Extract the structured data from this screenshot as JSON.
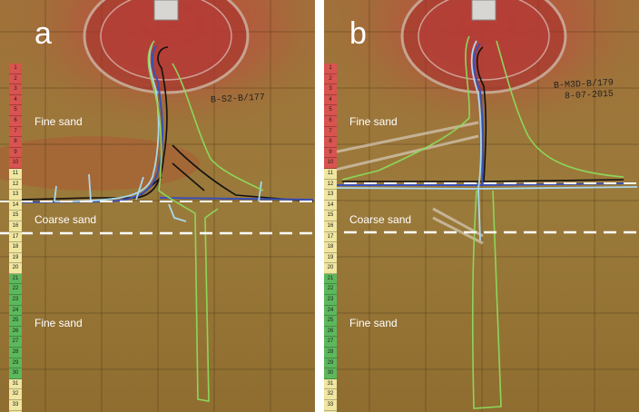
{
  "panels": [
    {
      "letter": "a",
      "note": "B-S2-B/177",
      "layers": {
        "top": "Fine sand",
        "middle": "Coarse sand",
        "bottom": "Fine sand"
      }
    },
    {
      "letter": "b",
      "note": "B-M3D-B/179",
      "note2": "8-07-2015",
      "layers": {
        "top": "Fine sand",
        "middle": "Coarse sand",
        "bottom": "Fine sand"
      }
    }
  ],
  "ruler_ticks": [
    "1",
    "2",
    "3",
    "4",
    "5",
    "6",
    "7",
    "8",
    "9",
    "10",
    "11",
    "12",
    "13",
    "14",
    "15",
    "16",
    "17",
    "18",
    "19",
    "20",
    "21",
    "22",
    "23",
    "24",
    "25",
    "26",
    "27",
    "28",
    "29",
    "30",
    "31",
    "32",
    "33",
    "34"
  ],
  "colors": {
    "sand": "#9a7636",
    "injection_red": "#c0392b",
    "contour_green": "#8cd65a",
    "contour_light_blue": "#a9d8ee",
    "contour_blue": "#3b4fb5",
    "contour_black": "#111111",
    "interface_dash": "#ffffff"
  }
}
